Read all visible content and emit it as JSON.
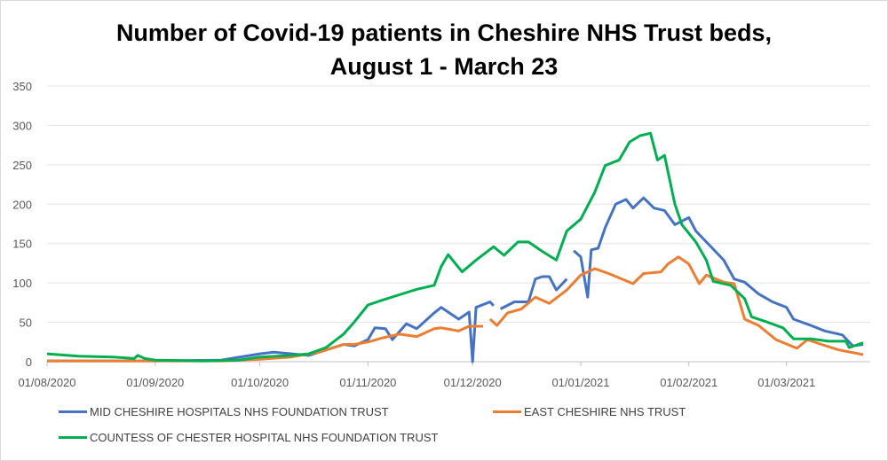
{
  "chart_data": {
    "type": "line",
    "title": "Number of Covid-19 patients in Cheshire NHS Trust beds,",
    "subtitle": "August 1 - March 23",
    "xlabel": "",
    "ylabel": "",
    "ylim": [
      0,
      350
    ],
    "yticks": [
      "0",
      "50",
      "100",
      "150",
      "200",
      "250",
      "300",
      "350"
    ],
    "xlim": [
      "01/08/2020",
      "25/03/2021"
    ],
    "xticks": [
      "01/08/2020",
      "01/09/2020",
      "01/10/2020",
      "01/11/2020",
      "01/12/2020",
      "01/01/2021",
      "01/02/2021",
      "01/03/2021"
    ],
    "grid": true,
    "legend_position": "bottom",
    "series": [
      {
        "name": "MID CHESHIRE HOSPITALS NHS FOUNDATION TRUST",
        "color": "#4472C4",
        "points": [
          [
            "01/08/2020",
            1
          ],
          [
            "15/08/2020",
            1
          ],
          [
            "01/09/2020",
            1
          ],
          [
            "20/09/2020",
            2
          ],
          [
            "01/10/2020",
            10
          ],
          [
            "05/10/2020",
            12
          ],
          [
            "15/10/2020",
            8
          ],
          [
            "25/10/2020",
            22
          ],
          [
            "28/10/2020",
            20
          ],
          [
            "01/11/2020",
            28
          ],
          [
            "03/11/2020",
            43
          ],
          [
            "06/11/2020",
            42
          ],
          [
            "08/11/2020",
            28
          ],
          [
            "12/11/2020",
            48
          ],
          [
            "15/11/2020",
            42
          ],
          [
            "20/11/2020",
            62
          ],
          [
            "22/11/2020",
            69
          ],
          [
            "27/11/2020",
            54
          ],
          [
            "30/11/2020",
            63
          ],
          [
            "01/12/2020",
            0
          ],
          [
            "02/12/2020",
            69
          ],
          [
            "06/12/2020",
            76
          ],
          [
            "07/12/2020",
            71
          ],
          [
            "08/12/2020",
            null
          ],
          [
            "09/12/2020",
            67
          ],
          [
            "13/12/2020",
            76
          ],
          [
            "17/12/2020",
            76
          ],
          [
            "19/12/2020",
            105
          ],
          [
            "21/12/2020",
            108
          ],
          [
            "23/12/2020",
            108
          ],
          [
            "25/12/2020",
            91
          ],
          [
            "28/12/2020",
            105
          ],
          [
            "29/12/2020",
            null
          ],
          [
            "30/12/2020",
            141
          ],
          [
            "01/01/2021",
            133
          ],
          [
            "03/01/2021",
            82
          ],
          [
            "04/01/2021",
            142
          ],
          [
            "06/01/2021",
            144
          ],
          [
            "08/01/2021",
            170
          ],
          [
            "11/01/2021",
            200
          ],
          [
            "14/01/2021",
            206
          ],
          [
            "16/01/2021",
            195
          ],
          [
            "19/01/2021",
            208
          ],
          [
            "22/01/2021",
            195
          ],
          [
            "25/01/2021",
            192
          ],
          [
            "28/01/2021",
            174
          ],
          [
            "01/02/2021",
            183
          ],
          [
            "03/02/2021",
            166
          ],
          [
            "06/02/2021",
            152
          ],
          [
            "11/02/2021",
            129
          ],
          [
            "14/02/2021",
            105
          ],
          [
            "17/02/2021",
            101
          ],
          [
            "21/02/2021",
            86
          ],
          [
            "25/02/2021",
            76
          ],
          [
            "01/03/2021",
            69
          ],
          [
            "03/03/2021",
            54
          ],
          [
            "08/03/2021",
            46
          ],
          [
            "12/03/2021",
            39
          ],
          [
            "17/03/2021",
            34
          ],
          [
            "20/03/2021",
            20
          ],
          [
            "23/03/2021",
            22
          ]
        ]
      },
      {
        "name": "EAST CHESHIRE NHS TRUST",
        "color": "#ED7D31",
        "points": [
          [
            "01/08/2020",
            1
          ],
          [
            "01/09/2020",
            1
          ],
          [
            "20/09/2020",
            1
          ],
          [
            "01/10/2020",
            3
          ],
          [
            "10/10/2020",
            6
          ],
          [
            "18/10/2020",
            12
          ],
          [
            "25/10/2020",
            22
          ],
          [
            "28/10/2020",
            22
          ],
          [
            "01/11/2020",
            25
          ],
          [
            "05/11/2020",
            30
          ],
          [
            "10/11/2020",
            35
          ],
          [
            "15/11/2020",
            32
          ],
          [
            "20/11/2020",
            42
          ],
          [
            "22/11/2020",
            43
          ],
          [
            "27/11/2020",
            39
          ],
          [
            "30/11/2020",
            45
          ],
          [
            "04/12/2020",
            45
          ],
          [
            "05/12/2020",
            null
          ],
          [
            "06/12/2020",
            54
          ],
          [
            "08/12/2020",
            46
          ],
          [
            "11/12/2020",
            62
          ],
          [
            "15/12/2020",
            67
          ],
          [
            "19/12/2020",
            82
          ],
          [
            "23/12/2020",
            74
          ],
          [
            "28/12/2020",
            91
          ],
          [
            "01/01/2021",
            110
          ],
          [
            "05/01/2021",
            118
          ],
          [
            "09/01/2021",
            112
          ],
          [
            "16/01/2021",
            99
          ],
          [
            "19/01/2021",
            112
          ],
          [
            "24/01/2021",
            114
          ],
          [
            "26/01/2021",
            124
          ],
          [
            "29/01/2021",
            133
          ],
          [
            "01/02/2021",
            124
          ],
          [
            "04/02/2021",
            99
          ],
          [
            "06/02/2021",
            110
          ],
          [
            "11/02/2021",
            101
          ],
          [
            "14/02/2021",
            99
          ],
          [
            "17/02/2021",
            54
          ],
          [
            "21/02/2021",
            46
          ],
          [
            "26/02/2021",
            28
          ],
          [
            "04/03/2021",
            17
          ],
          [
            "07/03/2021",
            28
          ],
          [
            "11/03/2021",
            22
          ],
          [
            "16/03/2021",
            15
          ],
          [
            "23/03/2021",
            9
          ]
        ]
      },
      {
        "name": "COUNTESS OF CHESTER HOSPITAL NHS FOUNDATION TRUST",
        "color": "#00B050",
        "points": [
          [
            "01/08/2020",
            10
          ],
          [
            "10/08/2020",
            7
          ],
          [
            "20/08/2020",
            6
          ],
          [
            "26/08/2020",
            4
          ],
          [
            "27/08/2020",
            8
          ],
          [
            "29/08/2020",
            4
          ],
          [
            "01/09/2020",
            2
          ],
          [
            "15/09/2020",
            1
          ],
          [
            "25/09/2020",
            2
          ],
          [
            "01/10/2020",
            6
          ],
          [
            "10/10/2020",
            8
          ],
          [
            "15/10/2020",
            10
          ],
          [
            "20/10/2020",
            18
          ],
          [
            "25/10/2020",
            35
          ],
          [
            "28/10/2020",
            50
          ],
          [
            "01/11/2020",
            72
          ],
          [
            "05/11/2020",
            78
          ],
          [
            "10/11/2020",
            85
          ],
          [
            "15/11/2020",
            92
          ],
          [
            "20/11/2020",
            97
          ],
          [
            "22/11/2020",
            121
          ],
          [
            "24/11/2020",
            136
          ],
          [
            "28/11/2020",
            114
          ],
          [
            "02/12/2020",
            129
          ],
          [
            "07/12/2020",
            146
          ],
          [
            "10/12/2020",
            135
          ],
          [
            "14/12/2020",
            152
          ],
          [
            "17/12/2020",
            152
          ],
          [
            "21/12/2020",
            140
          ],
          [
            "25/12/2020",
            129
          ],
          [
            "28/12/2020",
            166
          ],
          [
            "01/01/2021",
            181
          ],
          [
            "05/01/2021",
            215
          ],
          [
            "08/01/2021",
            249
          ],
          [
            "12/01/2021",
            256
          ],
          [
            "15/01/2021",
            279
          ],
          [
            "18/01/2021",
            287
          ],
          [
            "21/01/2021",
            290
          ],
          [
            "23/01/2021",
            256
          ],
          [
            "25/01/2021",
            262
          ],
          [
            "28/01/2021",
            200
          ],
          [
            "30/01/2021",
            174
          ],
          [
            "03/02/2021",
            152
          ],
          [
            "06/02/2021",
            129
          ],
          [
            "08/02/2021",
            102
          ],
          [
            "13/02/2021",
            97
          ],
          [
            "17/02/2021",
            80
          ],
          [
            "19/02/2021",
            57
          ],
          [
            "23/02/2021",
            51
          ],
          [
            "28/02/2021",
            43
          ],
          [
            "03/03/2021",
            29
          ],
          [
            "08/03/2021",
            29
          ],
          [
            "13/03/2021",
            26
          ],
          [
            "18/03/2021",
            26
          ],
          [
            "19/03/2021",
            18
          ],
          [
            "23/03/2021",
            24
          ]
        ]
      }
    ]
  }
}
